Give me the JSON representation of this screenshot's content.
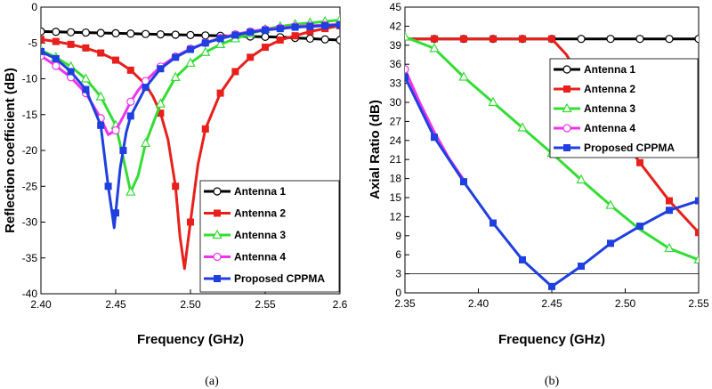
{
  "chart_data": [
    {
      "type": "line",
      "panel_label": "(a)",
      "xlabel": "Frequency (GHz)",
      "ylabel": "Reflection coefficient (dB)",
      "xlim": [
        2.4,
        2.6
      ],
      "ylim": [
        -40,
        0
      ],
      "xticks": [
        2.4,
        2.45,
        2.5,
        2.55,
        2.6
      ],
      "xtick_labels": [
        "2.40",
        "2.45",
        "2.50",
        "2.55",
        "2.6"
      ],
      "yticks": [
        0,
        -5,
        -10,
        -15,
        -20,
        -25,
        -30,
        -35,
        -40
      ],
      "ytick_labels": [
        "0",
        "-5",
        "-10",
        "-15",
        "-20",
        "-25",
        "-30",
        "-35",
        "-40"
      ],
      "legend_position": "bottom-right",
      "series": [
        {
          "name": "Antenna 1",
          "color": "#000000",
          "marker": "circle",
          "x": [
            2.4,
            2.41,
            2.42,
            2.43,
            2.44,
            2.45,
            2.46,
            2.47,
            2.48,
            2.49,
            2.5,
            2.51,
            2.52,
            2.53,
            2.54,
            2.55,
            2.56,
            2.57,
            2.58,
            2.59,
            2.6
          ],
          "y": [
            -3.4,
            -3.45,
            -3.5,
            -3.55,
            -3.6,
            -3.65,
            -3.7,
            -3.75,
            -3.8,
            -3.85,
            -3.9,
            -3.95,
            -4.0,
            -4.05,
            -4.1,
            -4.15,
            -4.2,
            -4.3,
            -4.4,
            -4.5,
            -4.6
          ],
          "marker_x": [
            2.4,
            2.41,
            2.42,
            2.43,
            2.44,
            2.45,
            2.46,
            2.47,
            2.48,
            2.49,
            2.5,
            2.51,
            2.52,
            2.53,
            2.54,
            2.55,
            2.56,
            2.57,
            2.58,
            2.59,
            2.6
          ]
        },
        {
          "name": "Antenna 2",
          "color": "#e8201c",
          "marker": "square",
          "x": [
            2.4,
            2.41,
            2.42,
            2.43,
            2.44,
            2.45,
            2.46,
            2.47,
            2.475,
            2.48,
            2.485,
            2.49,
            2.493,
            2.496,
            2.5,
            2.505,
            2.51,
            2.52,
            2.53,
            2.54,
            2.55,
            2.56,
            2.57,
            2.58,
            2.59,
            2.6
          ],
          "y": [
            -4.5,
            -4.8,
            -5.2,
            -5.7,
            -6.4,
            -7.4,
            -8.8,
            -10.8,
            -12.5,
            -14.8,
            -18.5,
            -25.0,
            -32.0,
            -36.5,
            -30.0,
            -22.0,
            -17.0,
            -12.0,
            -9.0,
            -7.0,
            -5.6,
            -4.6,
            -4.0,
            -3.4,
            -3.0,
            -2.6
          ],
          "marker_x": [
            2.4,
            2.41,
            2.42,
            2.43,
            2.44,
            2.45,
            2.46,
            2.47,
            2.48,
            2.49,
            2.5,
            2.51,
            2.52,
            2.53,
            2.54,
            2.55,
            2.56,
            2.57,
            2.58,
            2.59,
            2.6
          ]
        },
        {
          "name": "Antenna 3",
          "color": "#33dd33",
          "marker": "triangle",
          "x": [
            2.4,
            2.41,
            2.42,
            2.43,
            2.44,
            2.45,
            2.455,
            2.46,
            2.465,
            2.47,
            2.48,
            2.49,
            2.5,
            2.51,
            2.52,
            2.53,
            2.54,
            2.55,
            2.56,
            2.57,
            2.58,
            2.59,
            2.6
          ],
          "y": [
            -6.0,
            -7.0,
            -8.3,
            -10.0,
            -12.5,
            -16.5,
            -21.0,
            -25.8,
            -23.5,
            -19.0,
            -13.5,
            -9.8,
            -7.8,
            -6.3,
            -5.2,
            -4.4,
            -3.7,
            -3.1,
            -2.7,
            -2.4,
            -2.2,
            -2.0,
            -1.8
          ],
          "marker_x": [
            2.4,
            2.41,
            2.42,
            2.43,
            2.44,
            2.45,
            2.46,
            2.47,
            2.48,
            2.49,
            2.5,
            2.51,
            2.52,
            2.53,
            2.54,
            2.55,
            2.56,
            2.57,
            2.58,
            2.59,
            2.6
          ]
        },
        {
          "name": "Antenna 4",
          "color": "#ee33ee",
          "marker": "circle",
          "x": [
            2.4,
            2.41,
            2.42,
            2.43,
            2.44,
            2.445,
            2.45,
            2.455,
            2.46,
            2.465,
            2.47,
            2.48,
            2.49,
            2.5,
            2.51,
            2.52,
            2.53,
            2.54,
            2.55,
            2.56,
            2.57,
            2.58,
            2.59,
            2.6
          ],
          "y": [
            -6.8,
            -8.2,
            -9.8,
            -12.0,
            -15.5,
            -17.8,
            -17.2,
            -15.3,
            -13.2,
            -11.6,
            -10.3,
            -8.3,
            -6.9,
            -5.8,
            -5.0,
            -4.3,
            -3.8,
            -3.4,
            -3.1,
            -2.9,
            -2.7,
            -2.6,
            -2.5,
            -2.4
          ],
          "marker_x": [
            2.4,
            2.41,
            2.42,
            2.43,
            2.44,
            2.45,
            2.46,
            2.47,
            2.48,
            2.49,
            2.5,
            2.51,
            2.52,
            2.53,
            2.54,
            2.55,
            2.56,
            2.57,
            2.58,
            2.59,
            2.6
          ]
        },
        {
          "name": "Proposed CPPMA",
          "color": "#1f3fe0",
          "marker": "square",
          "x": [
            2.4,
            2.41,
            2.42,
            2.43,
            2.44,
            2.445,
            2.449,
            2.453,
            2.457,
            2.46,
            2.47,
            2.48,
            2.49,
            2.5,
            2.51,
            2.52,
            2.53,
            2.54,
            2.55,
            2.56,
            2.57,
            2.58,
            2.59,
            2.6
          ],
          "y": [
            -6.2,
            -7.2,
            -9.0,
            -11.5,
            -16.5,
            -25.0,
            -30.8,
            -22.5,
            -17.5,
            -15.2,
            -11.2,
            -8.6,
            -7.0,
            -5.9,
            -5.0,
            -4.4,
            -3.9,
            -3.5,
            -3.2,
            -3.0,
            -2.8,
            -2.7,
            -2.6,
            -2.5
          ],
          "marker_x": [
            2.4,
            2.41,
            2.42,
            2.43,
            2.44,
            2.445,
            2.45,
            2.455,
            2.46,
            2.47,
            2.48,
            2.49,
            2.5,
            2.51,
            2.52,
            2.53,
            2.54,
            2.55,
            2.56,
            2.57,
            2.58,
            2.59,
            2.6
          ]
        }
      ]
    },
    {
      "type": "line",
      "panel_label": "(b)",
      "xlabel": "Frequency (GHz)",
      "ylabel": "Axial Ratio (dB)",
      "xlim": [
        2.35,
        2.55
      ],
      "ylim": [
        0,
        45
      ],
      "xticks": [
        2.35,
        2.4,
        2.45,
        2.5,
        2.55
      ],
      "xtick_labels": [
        "2.35",
        "2.40",
        "2.45",
        "2.50",
        "2.55"
      ],
      "yticks": [
        0,
        3,
        6,
        9,
        12,
        15,
        18,
        21,
        24,
        27,
        30,
        33,
        36,
        39,
        42,
        45
      ],
      "ytick_labels": [
        "0",
        "3",
        "6",
        "9",
        "12",
        "15",
        "18",
        "21",
        "24",
        "27",
        "30",
        "33",
        "36",
        "39",
        "42",
        "45"
      ],
      "reference_line_y": 3,
      "legend_position": "top-right",
      "series": [
        {
          "name": "Antenna 1",
          "color": "#000000",
          "marker": "circle",
          "x": [
            2.35,
            2.37,
            2.39,
            2.41,
            2.43,
            2.45,
            2.47,
            2.49,
            2.51,
            2.53,
            2.55
          ],
          "y": [
            40,
            40,
            40,
            40,
            40,
            40,
            40,
            40,
            40,
            40,
            40
          ],
          "marker_x": [
            2.37,
            2.39,
            2.41,
            2.43,
            2.45,
            2.47,
            2.49,
            2.51,
            2.53,
            2.55
          ]
        },
        {
          "name": "Antenna 2",
          "color": "#e8201c",
          "marker": "square",
          "x": [
            2.35,
            2.37,
            2.39,
            2.41,
            2.43,
            2.45,
            2.46,
            2.47,
            2.49,
            2.51,
            2.53,
            2.55
          ],
          "y": [
            40,
            40,
            40,
            40,
            40,
            40,
            37.5,
            33.5,
            27.0,
            20.5,
            14.5,
            9.5
          ],
          "marker_x": [
            2.37,
            2.39,
            2.41,
            2.43,
            2.45,
            2.51,
            2.53,
            2.55
          ]
        },
        {
          "name": "Antenna 3",
          "color": "#33dd33",
          "marker": "triangle",
          "x": [
            2.35,
            2.37,
            2.39,
            2.41,
            2.43,
            2.45,
            2.47,
            2.49,
            2.51,
            2.53,
            2.55
          ],
          "y": [
            40.3,
            38.5,
            34.0,
            30.0,
            26.0,
            22.0,
            17.8,
            13.8,
            10.0,
            7.0,
            5.2
          ],
          "marker_x": [
            2.35,
            2.37,
            2.39,
            2.41,
            2.43,
            2.45,
            2.47,
            2.49,
            2.53,
            2.55
          ]
        },
        {
          "name": "Antenna 4",
          "color": "#ee33ee",
          "marker": "circle",
          "x": [
            2.35,
            2.36,
            2.37,
            2.38,
            2.39
          ],
          "y": [
            35.2,
            30.0,
            25.3,
            21.2,
            17.8
          ],
          "marker_x": [
            2.35
          ]
        },
        {
          "name": "Proposed CPPMA",
          "color": "#1f3fe0",
          "marker": "square",
          "x": [
            2.35,
            2.37,
            2.39,
            2.41,
            2.43,
            2.45,
            2.47,
            2.49,
            2.51,
            2.53,
            2.55
          ],
          "y": [
            34.0,
            24.5,
            17.5,
            11.0,
            5.2,
            1.0,
            4.2,
            7.8,
            10.5,
            13.0,
            14.5
          ],
          "marker_x": [
            2.35,
            2.37,
            2.39,
            2.41,
            2.43,
            2.45,
            2.47,
            2.49,
            2.51,
            2.53,
            2.55
          ]
        }
      ]
    }
  ]
}
